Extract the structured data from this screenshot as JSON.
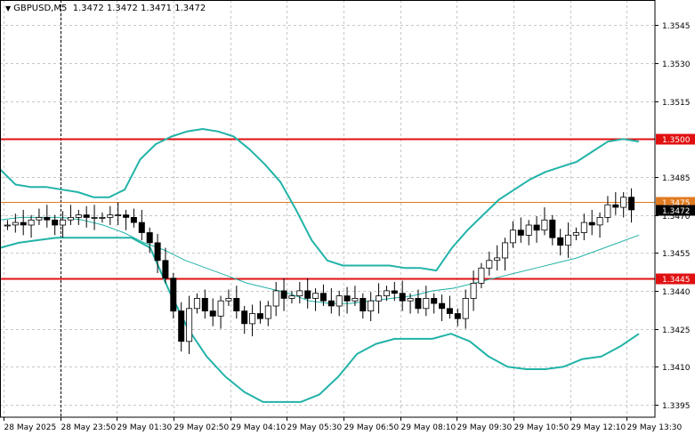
{
  "header": {
    "symbol": "GBPUSD,M5",
    "ohlc": "1.3472 1.3472 1.3471 1.3472"
  },
  "chart_data": {
    "type": "candlestick",
    "symbol": "GBPUSD",
    "timeframe": "M5",
    "ylim": [
      1.339,
      1.3555
    ],
    "y_ticks": [
      "1.3545",
      "1.3530",
      "1.3515",
      "1.3485",
      "1.3470",
      "1.3455",
      "1.3440",
      "1.3425",
      "1.3410",
      "1.3395"
    ],
    "x_ticks": [
      "28 May 2025",
      "28 May 23:50",
      "29 May 01:30",
      "29 May 02:50",
      "29 May 04:10",
      "29 May 05:30",
      "29 May 06:50",
      "29 May 08:10",
      "29 May 09:30",
      "29 May 10:50",
      "29 May 12:10",
      "29 May 13:30"
    ],
    "horizontal_levels": [
      {
        "label": "1.3500",
        "value": 1.35,
        "color": "#e01010"
      },
      {
        "label": "1.3475",
        "value": 1.3475,
        "color": "#e07a20"
      },
      {
        "label": "1.3445",
        "value": 1.3445,
        "color": "#e01010"
      }
    ],
    "current_price": {
      "label": "1.3472",
      "value": 1.3472
    },
    "colors": {
      "bollinger": "#22b3a8",
      "moving_average": "#22b3a8",
      "candle": "#000000",
      "grid": "#c8c8c8"
    },
    "bollinger_upper": [
      1.3488,
      1.3482,
      1.3481,
      1.3481,
      1.348,
      1.3479,
      1.3477,
      1.3477,
      1.348,
      1.3492,
      1.3498,
      1.3501,
      1.3503,
      1.3504,
      1.3503,
      1.3501,
      1.3496,
      1.349,
      1.3483,
      1.3472,
      1.346,
      1.3452,
      1.345,
      1.345,
      1.345,
      1.345,
      1.3449,
      1.3449,
      1.3448,
      1.3457,
      1.3464,
      1.347,
      1.3476,
      1.348,
      1.3484,
      1.3487,
      1.3489,
      1.3491,
      1.3495,
      1.3499,
      1.35,
      1.3499
    ],
    "bollinger_lower": [
      1.3457,
      1.3459,
      1.346,
      1.3461,
      1.3461,
      1.3461,
      1.3461,
      1.3461,
      1.3457,
      1.344,
      1.3425,
      1.3414,
      1.3406,
      1.34,
      1.3396,
      1.3396,
      1.3396,
      1.3399,
      1.3406,
      1.3415,
      1.3419,
      1.3421,
      1.3421,
      1.3421,
      1.3423,
      1.342,
      1.3414,
      1.341,
      1.3409,
      1.3409,
      1.341,
      1.3413,
      1.3414,
      1.3418,
      1.3423
    ],
    "moving_average": [
      1.3468,
      1.3469,
      1.3469,
      1.3469,
      1.3468,
      1.3466,
      1.3463,
      1.3459,
      1.3456,
      1.3452,
      1.3449,
      1.3446,
      1.3443,
      1.3441,
      1.3439,
      1.3436,
      1.3435,
      1.3435,
      1.3436,
      1.3437,
      1.3438,
      1.344,
      1.3441,
      1.3443,
      1.3445,
      1.3447,
      1.3449,
      1.3451,
      1.3453,
      1.3456,
      1.3459,
      1.3462
    ],
    "candles_close": [
      1.3466,
      1.3467,
      1.3466,
      1.3468,
      1.3469,
      1.3468,
      1.3466,
      1.3468,
      1.3469,
      1.347,
      1.3469,
      1.3469,
      1.3469,
      1.347,
      1.347,
      1.3469,
      1.3467,
      1.3463,
      1.3459,
      1.3452,
      1.3445,
      1.3432,
      1.342,
      1.3433,
      1.3437,
      1.3432,
      1.343,
      1.3436,
      1.3437,
      1.3432,
      1.3427,
      1.3431,
      1.3429,
      1.3434,
      1.344,
      1.3437,
      1.3438,
      1.344,
      1.3437,
      1.3439,
      1.3436,
      1.3434,
      1.3438,
      1.3436,
      1.3437,
      1.3432,
      1.3436,
      1.3438,
      1.344,
      1.3439,
      1.3436,
      1.3437,
      1.3433,
      1.3437,
      1.3435,
      1.3433,
      1.3431,
      1.3429,
      1.3437,
      1.3443,
      1.3449,
      1.3452,
      1.3453,
      1.3459,
      1.3464,
      1.3462,
      1.3466,
      1.3464,
      1.3468,
      1.3461,
      1.3458,
      1.3462,
      1.3463,
      1.3467,
      1.3466,
      1.3469,
      1.3474,
      1.3473,
      1.3477,
      1.3472
    ]
  }
}
